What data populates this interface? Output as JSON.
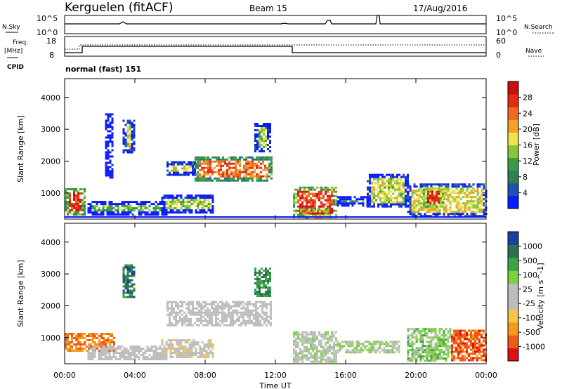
{
  "header": {
    "station": "Kerguelen (fitACF)",
    "beam": "Beam 15",
    "date": "17/Aug/2016"
  },
  "noise_panel": {
    "left_label": "N.Sky",
    "right_label": "N.Search",
    "y_ticks": [
      "10^5",
      "10^0"
    ]
  },
  "freq_panel": {
    "left_label_1": "Freq.",
    "left_label_2": "[MHz]",
    "right_label": "Nave",
    "left_ticks": [
      "18",
      "8"
    ],
    "right_ticks": [
      "60",
      "0"
    ]
  },
  "cpid": {
    "label": "CPID",
    "value": "normal (fast) 151"
  },
  "x_ticks": [
    "00:00",
    "04:00",
    "08:00",
    "12:00",
    "16:00",
    "20:00",
    "00:00"
  ],
  "x_label": "Time UT",
  "chart_data": [
    {
      "type": "heatmap",
      "name": "power",
      "ylabel": "Slant Range [km]",
      "y_ticks": [
        "4000",
        "3000",
        "2000",
        "1000"
      ],
      "ylim": [
        180,
        4590
      ],
      "xlim": [
        0,
        24
      ],
      "colorbar": {
        "label": "Power [dB]",
        "ticks": [
          "28",
          "24",
          "20",
          "16",
          "12",
          "8",
          "4"
        ],
        "range": [
          0,
          30
        ],
        "colors": [
          "#0a1aff",
          "#2250b0",
          "#2f7f52",
          "#3a9a48",
          "#8ac63a",
          "#f0e24a",
          "#f5a028",
          "#ef6a1e",
          "#e52a12",
          "#cc0e0e"
        ]
      },
      "regions": [
        {
          "t0": 0.0,
          "t1": 1.1,
          "r0": 300,
          "r1": 1150,
          "level": 0.85
        },
        {
          "t0": 1.3,
          "t1": 5.8,
          "r0": 350,
          "r1": 750,
          "level": 0.4
        },
        {
          "t0": 2.3,
          "t1": 2.7,
          "r0": 1500,
          "r1": 3500,
          "level": 0.3
        },
        {
          "t0": 3.3,
          "t1": 4.0,
          "r0": 2300,
          "r1": 3300,
          "level": 0.5
        },
        {
          "t0": 5.8,
          "t1": 7.4,
          "r0": 1600,
          "r1": 2000,
          "level": 0.55
        },
        {
          "t0": 7.4,
          "t1": 11.8,
          "r0": 1400,
          "r1": 2150,
          "level": 0.75
        },
        {
          "t0": 10.8,
          "t1": 11.7,
          "r0": 2300,
          "r1": 3200,
          "level": 0.45
        },
        {
          "t0": 5.5,
          "t1": 8.5,
          "r0": 400,
          "r1": 950,
          "level": 0.45
        },
        {
          "t0": 13.0,
          "t1": 15.4,
          "r0": 250,
          "r1": 1200,
          "level": 0.85
        },
        {
          "t0": 13.4,
          "t1": 15.0,
          "r0": 250,
          "r1": 520,
          "level": 0.95
        },
        {
          "t0": 15.5,
          "t1": 17.3,
          "r0": 580,
          "r1": 900,
          "level": 0.35
        },
        {
          "t0": 17.2,
          "t1": 19.5,
          "r0": 600,
          "r1": 1600,
          "level": 0.5
        },
        {
          "t0": 19.5,
          "t1": 24.0,
          "r0": 250,
          "r1": 1300,
          "level": 0.55
        },
        {
          "t0": 20.4,
          "t1": 21.5,
          "r0": 600,
          "r1": 1200,
          "level": 0.9
        }
      ]
    },
    {
      "type": "heatmap",
      "name": "velocity",
      "ylabel": "Slant Range [km]",
      "y_ticks": [
        "4000",
        "3000",
        "2000",
        "1000"
      ],
      "ylim": [
        180,
        4590
      ],
      "xlim": [
        0,
        24
      ],
      "colorbar": {
        "label": "Velocity [m s^-1]",
        "ticks": [
          "1000",
          "500",
          "100",
          "25",
          "-25",
          "-100",
          "-500",
          "-1000"
        ],
        "range": [
          -1000,
          1000
        ],
        "colors": [
          "#e01010",
          "#ef5a18",
          "#f59a1a",
          "#f5c64a",
          "#bdbdbd",
          "#bdbdbd",
          "#7fd03e",
          "#3aa548",
          "#2f6f52",
          "#1a3fa0"
        ]
      },
      "regions": [
        {
          "t0": 0.0,
          "t1": 2.8,
          "r0": 600,
          "r1": 1150,
          "level": 0.2
        },
        {
          "t0": 1.3,
          "t1": 5.8,
          "r0": 350,
          "r1": 750,
          "level": 0.5
        },
        {
          "t0": 3.3,
          "t1": 4.0,
          "r0": 2300,
          "r1": 3300,
          "level": 0.85
        },
        {
          "t0": 5.8,
          "t1": 11.8,
          "r0": 1400,
          "r1": 2150,
          "level": 0.5
        },
        {
          "t0": 10.8,
          "t1": 11.7,
          "r0": 2300,
          "r1": 3200,
          "level": 0.8
        },
        {
          "t0": 5.5,
          "t1": 8.5,
          "r0": 400,
          "r1": 950,
          "level": 0.45
        },
        {
          "t0": 13.0,
          "t1": 15.4,
          "r0": 250,
          "r1": 1200,
          "level": 0.55
        },
        {
          "t0": 15.5,
          "t1": 19.0,
          "r0": 550,
          "r1": 900,
          "level": 0.6
        },
        {
          "t0": 19.5,
          "t1": 22.0,
          "r0": 250,
          "r1": 1300,
          "level": 0.65
        },
        {
          "t0": 22.0,
          "t1": 24.0,
          "r0": 300,
          "r1": 1250,
          "level": 0.15
        }
      ]
    }
  ]
}
